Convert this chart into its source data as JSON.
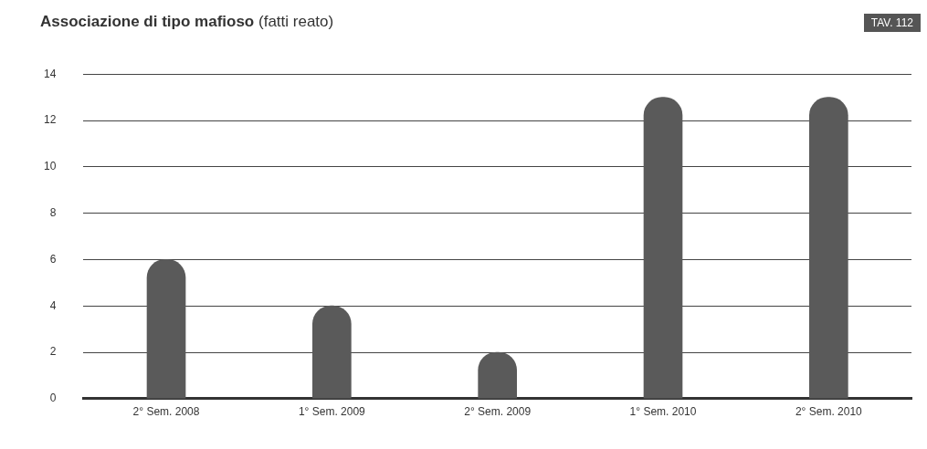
{
  "chart_data": {
    "type": "bar",
    "title": "Associazione di tipo mafioso",
    "subtitle": "(fatti reato)",
    "annotations": [
      "TAV. 112"
    ],
    "categories": [
      "2° Sem. 2008",
      "1° Sem. 2009",
      "2° Sem. 2009",
      "1° Sem. 2010",
      "2° Sem. 2010"
    ],
    "values": [
      6,
      4,
      2,
      13,
      13
    ],
    "color": "#5a5a5a",
    "ylim": [
      0,
      14
    ],
    "yticks": [
      0,
      2,
      4,
      6,
      8,
      10,
      12,
      14
    ],
    "grid": "y"
  }
}
